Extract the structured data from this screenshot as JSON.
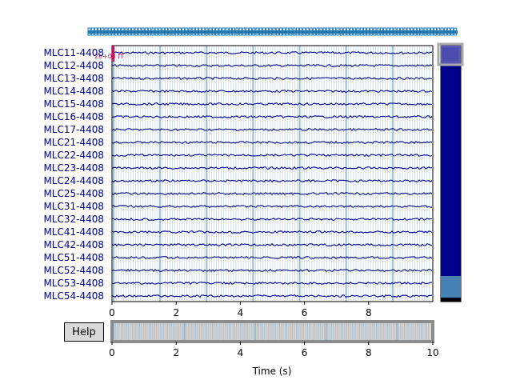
{
  "window": {
    "help_label": "Help",
    "xlabel": "Time (s)"
  },
  "channels": [
    "MLC11-4408",
    "MLC12-4408",
    "MLC13-4408",
    "MLC14-4408",
    "MLC15-4408",
    "MLC16-4408",
    "MLC17-4408",
    "MLC21-4408",
    "MLC22-4408",
    "MLC23-4408",
    "MLC24-4408",
    "MLC25-4408",
    "MLC31-4408",
    "MLC32-4408",
    "MLC41-4408",
    "MLC42-4408",
    "MLC51-4408",
    "MLC52-4408",
    "MLC53-4408",
    "MLC54-4408"
  ],
  "scale_label": "2e+03 fT",
  "main_axis": {
    "xlim": [
      0,
      10
    ],
    "xticks": [
      "0",
      "2",
      "4",
      "6",
      "8"
    ]
  },
  "overview_axis": {
    "xlim": [
      0,
      60
    ],
    "xticks": [
      "0",
      "2",
      "4",
      "6",
      "8",
      "10"
    ]
  },
  "colors": {
    "trace": "#00008b",
    "event_line": "#1f77b4",
    "scale_bar": "#c2185b",
    "scrollbar_fill": "#00008b",
    "scrollbar_light": "#4682b4"
  },
  "chart_data": {
    "type": "line",
    "xlabel": "Time (s)",
    "xlim": [
      0,
      10
    ],
    "series_count": 20
  }
}
